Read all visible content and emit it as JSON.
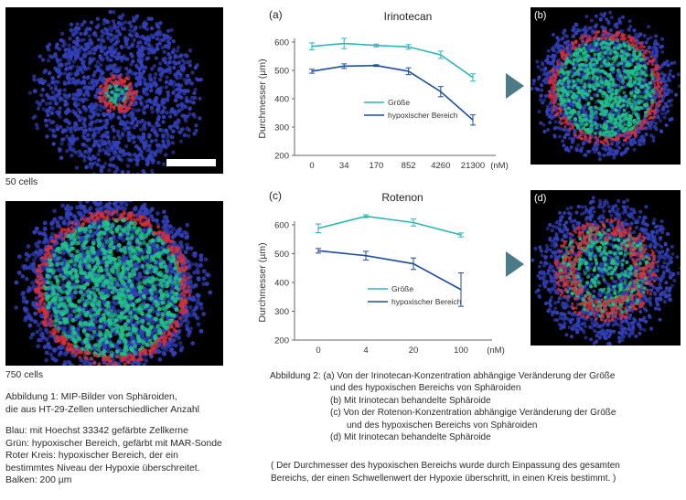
{
  "figure1": {
    "label_50": "50 cells",
    "label_750": "750 cells",
    "caption_lines": [
      "Abbildung 1: MIP-Bilder von Sphäroiden,",
      "die aus HT-29-Zellen unterschiedlicher Anzahl"
    ],
    "legend_lines": [
      "Blau: mit Hoechst 33342 gefärbte Zellkerne",
      "Grün: hypoxischer Bereich, gefärbt mit MAR-Sonde",
      "Roter Kreis: hypoxischer Bereich, der ein",
      "bestimmtes Niveau der Hypoxie überschreitet.",
      "Balken: 200 µm"
    ]
  },
  "panels": {
    "b": "(b)",
    "d": "(d)"
  },
  "colors": {
    "size_series": "#2fb6b8",
    "hypoxic_series": "#1f4e9c",
    "arrow": "#4a7b86",
    "nuclei": "#3340b8",
    "hypoxia": "#22c08a",
    "ring": "#d8303a"
  },
  "chart_data": [
    {
      "type": "line",
      "panel": "(a)",
      "title": "Irinotecan",
      "ylabel": "Durchmesser (µm)",
      "xunit": "(nM)",
      "categories": [
        "0",
        "34",
        "170",
        "852",
        "4260",
        "21300"
      ],
      "ylim": [
        200,
        600
      ],
      "yticks": [
        200,
        300,
        400,
        500,
        600
      ],
      "series": [
        {
          "name": "Größe",
          "values": [
            585,
            595,
            588,
            583,
            555,
            475
          ],
          "errors": [
            12,
            18,
            5,
            8,
            13,
            13
          ]
        },
        {
          "name": "hypoxischer Bereich",
          "values": [
            497,
            515,
            517,
            497,
            425,
            325
          ],
          "errors": [
            7,
            8,
            3,
            12,
            18,
            18
          ]
        }
      ],
      "legend": "center-right"
    },
    {
      "type": "line",
      "panel": "(c)",
      "title": "Rotenon",
      "ylabel": "Durchmesser (µm)",
      "xunit": "(nM)",
      "categories": [
        "0",
        "4",
        "20",
        "100"
      ],
      "ylim": [
        200,
        600
      ],
      "yticks": [
        200,
        300,
        400,
        500,
        600
      ],
      "series": [
        {
          "name": "Größe",
          "values": [
            588,
            630,
            608,
            565
          ],
          "errors": [
            15,
            5,
            12,
            7
          ]
        },
        {
          "name": "hypoxischer Bereich",
          "values": [
            510,
            493,
            465,
            375
          ],
          "errors": [
            8,
            15,
            20,
            58
          ]
        }
      ],
      "legend": "center"
    }
  ],
  "figure2": {
    "caption_lines": [
      "Abbildung 2: (a) Von der Irinotecan-Konzentration abhängige Veränderung der Größe",
      "und des hypoxischen Bereichs von Sphäroiden",
      "(b) Mit Irinotecan behandelte Sphäroide",
      "(c) Von der Rotenon-Konzentration abhängige Veränderung der Größe",
      "und des hypoxischen Bereichs von Sphäroiden",
      "(d) Mit Irinotecan behandelte Sphäroide"
    ],
    "note_lines": [
      "( Der Durchmesser des hypoxischen Bereichs wurde durch Einpassung des gesamten",
      "Bereichs, der einen Schwellenwert der Hypoxie überschritt, in einen Kreis bestimmt. )"
    ]
  }
}
